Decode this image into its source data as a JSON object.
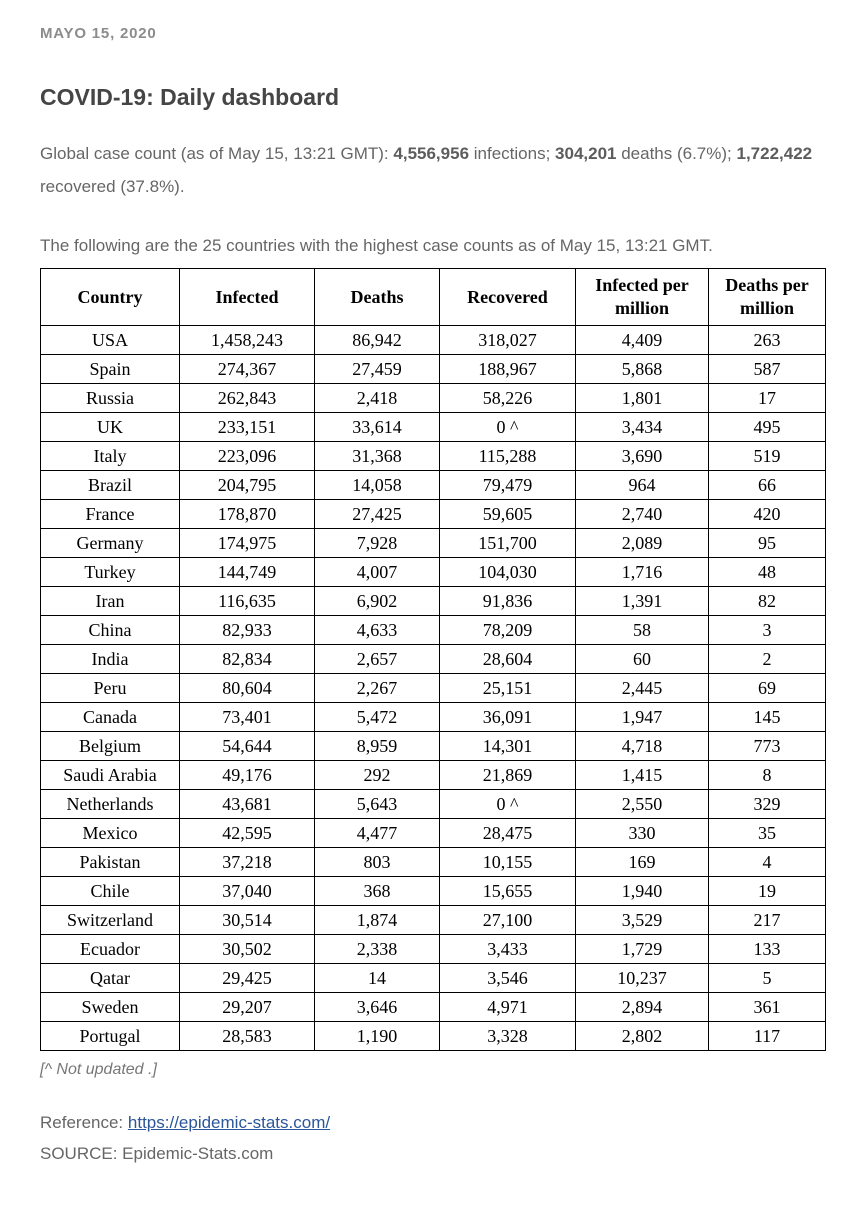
{
  "page": {
    "date": "MAYO 15, 2020",
    "title": "COVID-19: Daily dashboard",
    "intro": {
      "prefix": "Global case count (as of May 15, 13:21 GMT): ",
      "infections_count": "4,556,956",
      "infections_suffix": " infections; ",
      "deaths_count": "304,201",
      "deaths_suffix": " deaths (6.7%); ",
      "recovered_count": "1,722,422",
      "recovered_suffix": " recovered (37.8%)."
    },
    "table_description": "The following are the 25 countries with the highest case counts as of May 15, 13:21 GMT.",
    "footnote": "[^ Not updated .]",
    "reference_label": "Reference: ",
    "reference_link": "https://epidemic-stats.com/",
    "source": "SOURCE: Epidemic-Stats.com"
  },
  "table": {
    "headers": [
      "Country",
      "Infected",
      "Deaths",
      "Recovered",
      "Infected per million",
      "Deaths per million"
    ],
    "rows": [
      [
        "USA",
        "1,458,243",
        "86,942",
        "318,027",
        "4,409",
        "263"
      ],
      [
        "Spain",
        "274,367",
        "27,459",
        "188,967",
        "5,868",
        "587"
      ],
      [
        "Russia",
        "262,843",
        "2,418",
        "58,226",
        "1,801",
        "17"
      ],
      [
        "UK",
        "233,151",
        "33,614",
        "0 ^",
        "3,434",
        "495"
      ],
      [
        "Italy",
        "223,096",
        "31,368",
        "115,288",
        "3,690",
        "519"
      ],
      [
        "Brazil",
        "204,795",
        "14,058",
        "79,479",
        "964",
        "66"
      ],
      [
        "France",
        "178,870",
        "27,425",
        "59,605",
        "2,740",
        "420"
      ],
      [
        "Germany",
        "174,975",
        "7,928",
        "151,700",
        "2,089",
        "95"
      ],
      [
        "Turkey",
        "144,749",
        "4,007",
        "104,030",
        "1,716",
        "48"
      ],
      [
        "Iran",
        "116,635",
        "6,902",
        "91,836",
        "1,391",
        "82"
      ],
      [
        "China",
        "82,933",
        "4,633",
        "78,209",
        "58",
        "3"
      ],
      [
        "India",
        "82,834",
        "2,657",
        "28,604",
        "60",
        "2"
      ],
      [
        "Peru",
        "80,604",
        "2,267",
        "25,151",
        "2,445",
        "69"
      ],
      [
        "Canada",
        "73,401",
        "5,472",
        "36,091",
        "1,947",
        "145"
      ],
      [
        "Belgium",
        "54,644",
        "8,959",
        "14,301",
        "4,718",
        "773"
      ],
      [
        "Saudi Arabia",
        "49,176",
        "292",
        "21,869",
        "1,415",
        "8"
      ],
      [
        "Netherlands",
        "43,681",
        "5,643",
        "0 ^",
        "2,550",
        "329"
      ],
      [
        "Mexico",
        "42,595",
        "4,477",
        "28,475",
        "330",
        "35"
      ],
      [
        "Pakistan",
        "37,218",
        "803",
        "10,155",
        "169",
        "4"
      ],
      [
        "Chile",
        "37,040",
        "368",
        "15,655",
        "1,940",
        "19"
      ],
      [
        "Switzerland",
        "30,514",
        "1,874",
        "27,100",
        "3,529",
        "217"
      ],
      [
        "Ecuador",
        "30,502",
        "2,338",
        "3,433",
        "1,729",
        "133"
      ],
      [
        "Qatar",
        "29,425",
        "14",
        "3,546",
        "10,237",
        "5"
      ],
      [
        "Sweden",
        "29,207",
        "3,646",
        "4,971",
        "2,894",
        "361"
      ],
      [
        "Portugal",
        "28,583",
        "1,190",
        "3,328",
        "2,802",
        "117"
      ]
    ]
  }
}
